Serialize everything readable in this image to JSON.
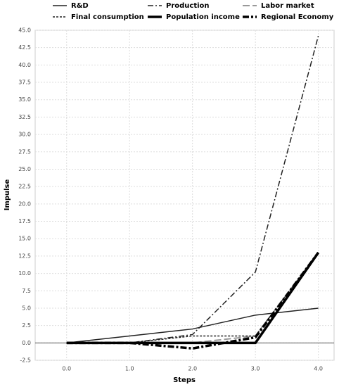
{
  "chart_data": {
    "type": "line",
    "x_label": "Steps",
    "y_label": "Impulse",
    "x": [
      0,
      1,
      2,
      3,
      4
    ],
    "xlim": [
      -0.5,
      4.25
    ],
    "xticks": [
      {
        "value": 0,
        "label": "0.0"
      },
      {
        "value": 1,
        "label": "1.0"
      },
      {
        "value": 2,
        "label": "2.0"
      },
      {
        "value": 3,
        "label": "3.0"
      },
      {
        "value": 4,
        "label": "4.0"
      }
    ],
    "ylim": [
      -2.5,
      45
    ],
    "yticks": [
      -2.5,
      {
        "value": 0,
        "label": "0.0"
      },
      2.5,
      {
        "value": 5,
        "label": "5.0"
      },
      7.5,
      {
        "value": 10,
        "label": "10.0"
      },
      12.5,
      {
        "value": 15,
        "label": "15.0"
      },
      17.5,
      {
        "value": 20,
        "label": "20.0"
      },
      22.5,
      {
        "value": 25,
        "label": "25.0"
      },
      27.5,
      {
        "value": 30,
        "label": "30.0"
      },
      32.5,
      {
        "value": 35,
        "label": "35.0"
      },
      37.5,
      {
        "value": 40,
        "label": "40.0"
      },
      42.5,
      {
        "value": 45,
        "label": "45.0"
      }
    ],
    "grid": true,
    "legend": "top",
    "series": [
      {
        "name": "R&D",
        "color": "#222222",
        "width": 1.5,
        "dash": "none",
        "values": [
          0,
          1,
          2,
          4,
          5
        ]
      },
      {
        "name": "Production",
        "color": "#222222",
        "width": 1.5,
        "dash": "8 3 2 3",
        "values": [
          0,
          0,
          1.2,
          10.2,
          44.2
        ]
      },
      {
        "name": "Labor market",
        "color": "#999999",
        "width": 2,
        "dash": "10 4",
        "values": [
          0,
          0,
          0,
          1,
          13
        ]
      },
      {
        "name": "Final consumption",
        "color": "#222222",
        "width": 1.5,
        "dash": "3 2",
        "values": [
          0,
          0,
          1,
          1,
          13
        ]
      },
      {
        "name": "Population income",
        "color": "#000000",
        "width": 3.5,
        "dash": "none",
        "values": [
          0,
          0,
          0,
          0,
          13
        ]
      },
      {
        "name": "Regional Economy",
        "color": "#000000",
        "width": 3.5,
        "dash": "9 3 3 3",
        "values": [
          0,
          0,
          -0.8,
          0.8,
          13
        ]
      }
    ]
  }
}
